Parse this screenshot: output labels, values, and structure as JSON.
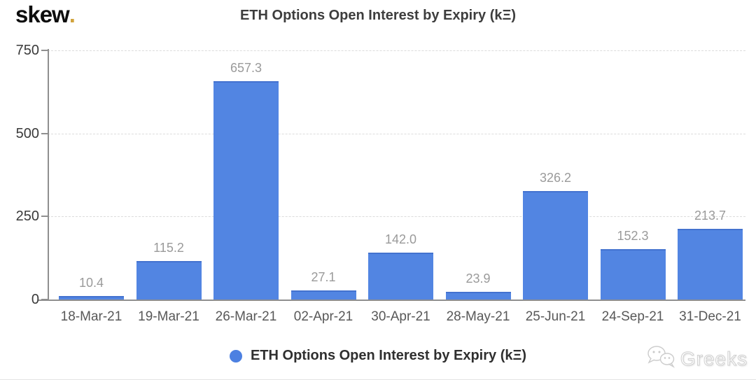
{
  "logo": {
    "text": "skew",
    "dot": "."
  },
  "header": {
    "title": "ETH Options Open Interest by Expiry (kΞ)"
  },
  "legend": {
    "label": "ETH Options Open Interest by Expiry (kΞ)",
    "marker_color": "#4c80e1"
  },
  "watermark": {
    "label": "Greeks",
    "icon": "wechat-icon"
  },
  "colors": {
    "bar_fill": "#5285e2",
    "bar_top_edge": "#4372cf",
    "logo_dot": "#d1a33c",
    "grid_line": "#dcdcdc",
    "axis_line": "#8f8f8f",
    "value_label": "#9a9a9a",
    "y_tick_label": "#3a3a3a",
    "x_tick_label": "#585858",
    "title_text": "#3d3d3d"
  },
  "chart_data": {
    "type": "bar",
    "title": "ETH Options Open Interest by Expiry (kΞ)",
    "categories": [
      "18-Mar-21",
      "19-Mar-21",
      "26-Mar-21",
      "02-Apr-21",
      "30-Apr-21",
      "28-May-21",
      "25-Jun-21",
      "24-Sep-21",
      "31-Dec-21"
    ],
    "values": [
      10.4,
      115.2,
      657.3,
      27.1,
      142.0,
      23.9,
      326.2,
      152.3,
      213.7
    ],
    "value_labels": [
      "10.4",
      "115.2",
      "657.3",
      "27.1",
      "142.0",
      "23.9",
      "326.2",
      "152.3",
      "213.7"
    ],
    "xlabel": "",
    "ylabel": "",
    "ylim": [
      0,
      750
    ],
    "yticks": [
      0,
      250,
      500,
      750
    ],
    "grid": "horizontal-dashed",
    "legend_position": "bottom-center",
    "legend_entries": [
      "ETH Options Open Interest by Expiry (kΞ)"
    ]
  }
}
